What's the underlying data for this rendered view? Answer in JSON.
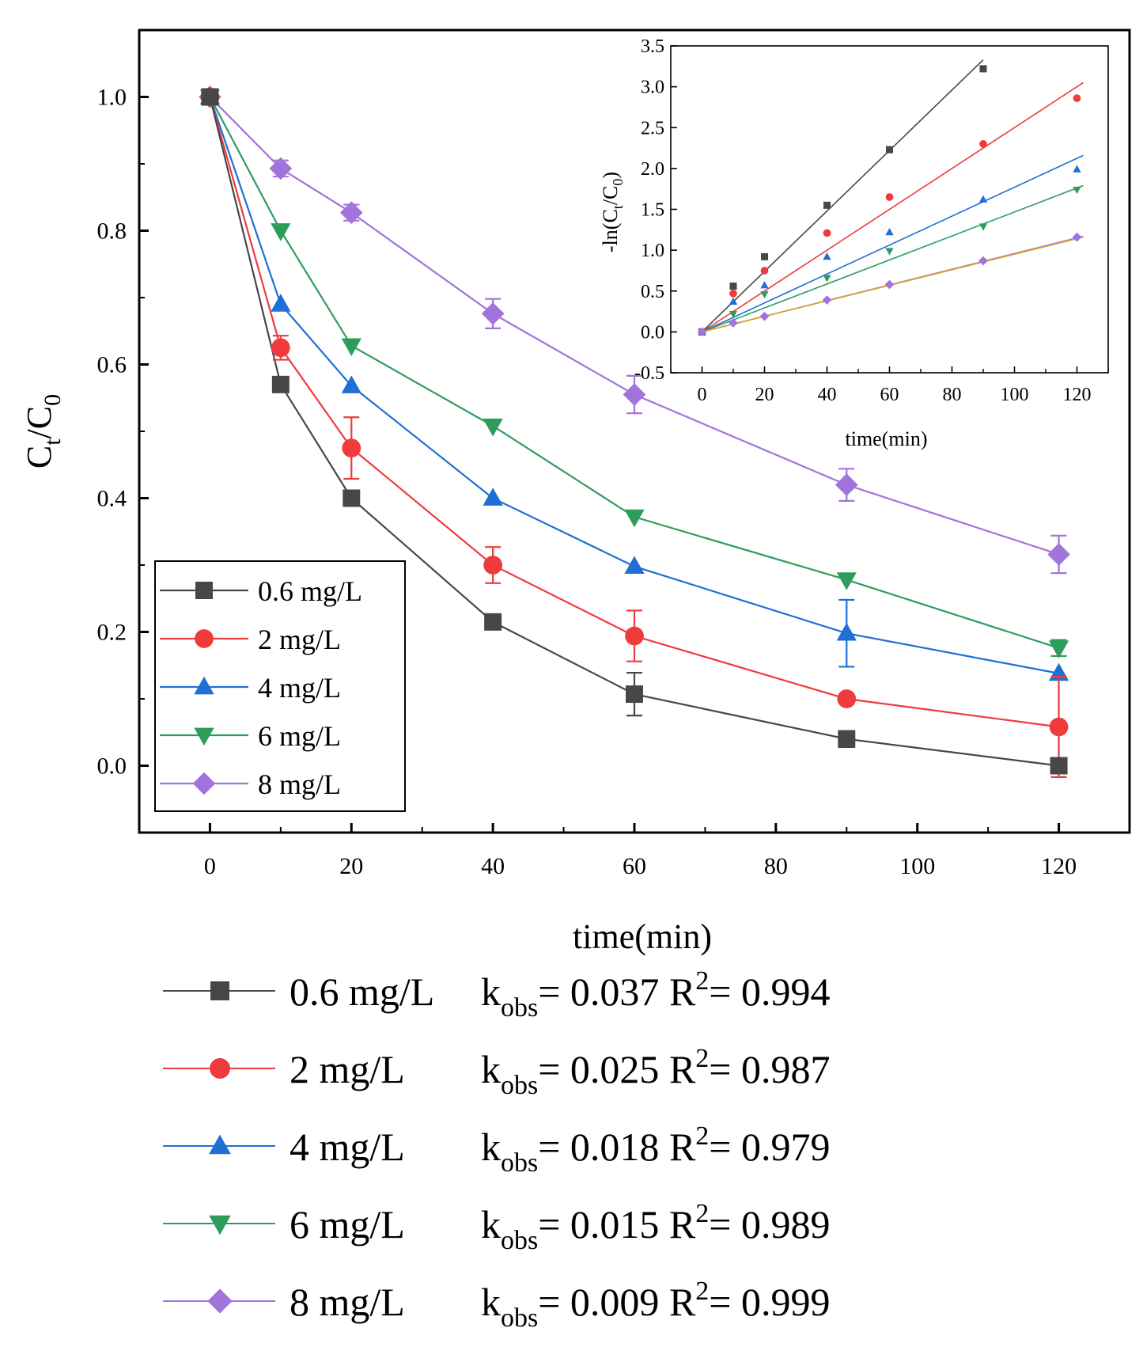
{
  "chart_data": [
    {
      "type": "line",
      "xlabel": "time(min)",
      "ylabel": {
        "base": "C",
        "sub1": "t",
        "slash": "/C",
        "sub2": "0"
      },
      "xlim": [
        -10,
        130
      ],
      "ylim": [
        -0.1,
        1.1
      ],
      "xticks": [
        0,
        20,
        40,
        60,
        80,
        100,
        120
      ],
      "yticks": [
        0.0,
        0.2,
        0.4,
        0.6,
        0.8,
        1.0
      ],
      "xtick_labels": [
        "0",
        "20",
        "40",
        "60",
        "80",
        "100",
        "120"
      ],
      "ytick_labels": [
        "0.0",
        "0.2",
        "0.4",
        "0.6",
        "0.8",
        "1.0"
      ],
      "legend_position": "bottom-left",
      "x": [
        0,
        10,
        20,
        40,
        60,
        90,
        120
      ],
      "series": [
        {
          "name": "0.6 mg/L",
          "color": "#474747",
          "marker": "square",
          "values": [
            1.0,
            0.57,
            0.4,
            0.215,
            0.107,
            0.04,
            0.0
          ],
          "errors": [
            0.0,
            0.0,
            0.0,
            0.0,
            0.032,
            0.012,
            0.0
          ]
        },
        {
          "name": "2 mg/L",
          "color": "#ef3b3b",
          "marker": "circle",
          "values": [
            1.0,
            0.625,
            0.475,
            0.3,
            0.194,
            0.1,
            0.058
          ],
          "errors": [
            0.0,
            0.018,
            0.046,
            0.027,
            0.038,
            0.0,
            0.075
          ]
        },
        {
          "name": "4 mg/L",
          "color": "#1f6fd6",
          "marker": "triangle-up",
          "values": [
            1.0,
            0.69,
            0.568,
            0.4,
            0.298,
            0.198,
            0.138
          ],
          "errors": [
            0.0,
            0.0,
            0.0,
            0.0,
            0.0,
            0.05,
            0.0
          ]
        },
        {
          "name": "6 mg/L",
          "color": "#2e9d5c",
          "marker": "triangle-down",
          "values": [
            1.0,
            0.8,
            0.628,
            0.508,
            0.372,
            0.278,
            0.176
          ],
          "errors": [
            0.0,
            0.0,
            0.0,
            0.0,
            0.0,
            0.0,
            0.012
          ]
        },
        {
          "name": "8 mg/L",
          "color": "#a173dc",
          "marker": "diamond",
          "values": [
            1.0,
            0.893,
            0.827,
            0.676,
            0.555,
            0.42,
            0.316
          ],
          "errors": [
            0.0,
            0.012,
            0.012,
            0.022,
            0.028,
            0.024,
            0.028
          ]
        }
      ]
    },
    {
      "type": "scatter",
      "role": "inset",
      "xlabel": "time(min)",
      "ylabel": {
        "prefix": "-ln(C",
        "sub1": "t",
        "mid": "/C",
        "sub2": "0",
        "suffix": ")"
      },
      "xlim": [
        -10,
        130
      ],
      "ylim": [
        -0.5,
        3.5
      ],
      "xticks": [
        0,
        20,
        40,
        60,
        80,
        100,
        120
      ],
      "yticks": [
        -0.5,
        0.0,
        0.5,
        1.0,
        1.5,
        2.0,
        2.5,
        3.0,
        3.5
      ],
      "xtick_labels": [
        "0",
        "20",
        "40",
        "60",
        "80",
        "100",
        "120"
      ],
      "ytick_labels": [
        "-0.5",
        "0.0",
        "0.5",
        "1.0",
        "1.5",
        "2.0",
        "2.5",
        "3.0",
        "3.5"
      ],
      "series": [
        {
          "name": "0.6 mg/L",
          "color": "#474747",
          "marker": "square",
          "x": [
            0,
            10,
            20,
            40,
            60,
            90
          ],
          "values": [
            0.0,
            0.56,
            0.92,
            1.55,
            2.23,
            3.22
          ],
          "fit": {
            "x": [
              0,
              90
            ],
            "y": [
              0.0,
              3.33
            ]
          }
        },
        {
          "name": "2 mg/L",
          "color": "#ef3b3b",
          "marker": "circle",
          "x": [
            0,
            10,
            20,
            40,
            60,
            90,
            120
          ],
          "values": [
            0.0,
            0.47,
            0.75,
            1.21,
            1.65,
            2.3,
            2.86
          ],
          "fit": {
            "x": [
              0,
              122
            ],
            "y": [
              0.0,
              3.05
            ]
          }
        },
        {
          "name": "4 mg/L",
          "color": "#1f6fd6",
          "marker": "triangle-up",
          "x": [
            0,
            10,
            20,
            40,
            60,
            90,
            120
          ],
          "values": [
            0.0,
            0.37,
            0.57,
            0.92,
            1.22,
            1.62,
            1.99
          ],
          "fit": {
            "x": [
              0,
              122
            ],
            "y": [
              0.0,
              2.16
            ]
          }
        },
        {
          "name": "6 mg/L",
          "color": "#2e9d5c",
          "marker": "triangle-down",
          "x": [
            0,
            10,
            20,
            40,
            60,
            90,
            120
          ],
          "values": [
            0.0,
            0.22,
            0.46,
            0.66,
            0.99,
            1.29,
            1.74
          ],
          "fit": {
            "x": [
              0,
              122
            ],
            "y": [
              0.0,
              1.79
            ]
          }
        },
        {
          "name": "8 mg/L",
          "color": "#a173dc",
          "marker": "diamond",
          "x": [
            0,
            10,
            20,
            40,
            60,
            90,
            120
          ],
          "values": [
            0.0,
            0.11,
            0.19,
            0.39,
            0.58,
            0.87,
            1.16
          ],
          "fit": {
            "x": [
              0,
              122
            ],
            "y": [
              0.0,
              1.17
            ]
          }
        },
        {
          "name": "8 mg/L fit",
          "color": "#d9a520",
          "marker": "none",
          "x": [],
          "values": [],
          "fit": {
            "x": [
              0,
              122
            ],
            "y": [
              0.0,
              1.16
            ]
          }
        }
      ]
    }
  ],
  "kinetics_legend": [
    {
      "conc": "0.6 mg/L",
      "k_label": "k",
      "k_sub": "obs",
      "k_value": "= 0.037",
      "r_label": "R",
      "r_sup": "2",
      "r_value": "= 0.994",
      "color": "#474747",
      "marker": "square"
    },
    {
      "conc": "2 mg/L",
      "k_label": "k",
      "k_sub": "obs",
      "k_value": "= 0.025",
      "r_label": "R",
      "r_sup": "2",
      "r_value": "= 0.987",
      "color": "#ef3b3b",
      "marker": "circle"
    },
    {
      "conc": "4 mg/L",
      "k_label": "k",
      "k_sub": "obs",
      "k_value": "= 0.018",
      "r_label": "R",
      "r_sup": "2",
      "r_value": "= 0.979",
      "color": "#1f6fd6",
      "marker": "triangle-up"
    },
    {
      "conc": "6 mg/L",
      "k_label": "k",
      "k_sub": "obs",
      "k_value": "= 0.015",
      "r_label": "R",
      "r_sup": "2",
      "r_value": "= 0.989",
      "color": "#2e9d5c",
      "marker": "triangle-down"
    },
    {
      "conc": "8 mg/L",
      "k_label": "k",
      "k_sub": "obs",
      "k_value": "= 0.009",
      "r_label": "R",
      "r_sup": "2",
      "r_value": "= 0.999",
      "color": "#a173dc",
      "marker": "diamond"
    }
  ]
}
